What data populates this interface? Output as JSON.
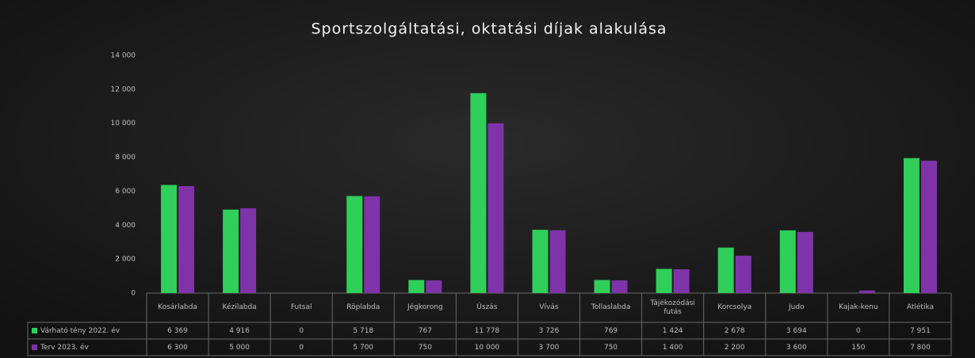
{
  "chart_data": {
    "type": "bar",
    "title": "Sportszolgáltatási, oktatási díjak alakulása",
    "categories": [
      "Kosárlabda",
      "Kézilabda",
      "Futsal",
      "Röplabda",
      "Jégkorong",
      "Úszás",
      "Vívás",
      "Tollaslabda",
      "Tájékozódási futás",
      "Korcsolya",
      "Judo",
      "Kajak-kenu",
      "Atlétika"
    ],
    "series": [
      {
        "name": "Várható tény 2022. év",
        "color": "#2fcf5a",
        "values": [
          6369,
          4916,
          0,
          5718,
          767,
          11778,
          3726,
          769,
          1424,
          2678,
          3694,
          0,
          7951
        ],
        "value_labels": [
          "6 369",
          "4 916",
          "0",
          "5 718",
          "767",
          "11 778",
          "3 726",
          "769",
          "1 424",
          "2 678",
          "3 694",
          "0",
          "7 951"
        ]
      },
      {
        "name": "Terv 2023. év",
        "color": "#7e34a8",
        "values": [
          6300,
          5000,
          0,
          5700,
          750,
          10000,
          3700,
          750,
          1400,
          2200,
          3600,
          150,
          7800
        ],
        "value_labels": [
          "6 300",
          "5 000",
          "0",
          "5 700",
          "750",
          "10 000",
          "3 700",
          "750",
          "1 400",
          "2 200",
          "3 600",
          "150",
          "7 800"
        ]
      }
    ],
    "ylim": [
      0,
      14000
    ],
    "yticks": [
      0,
      {
        "value": 2000,
        "label": "2 000"
      },
      {
        "value": 4000,
        "label": "4 000"
      },
      {
        "value": 6000,
        "label": "6 000"
      },
      {
        "value": 8000,
        "label": "8 000"
      },
      {
        "value": 10000,
        "label": "10 000"
      },
      {
        "value": 12000,
        "label": "12 000"
      },
      {
        "value": 14000,
        "label": "14 000"
      }
    ],
    "grid": false
  }
}
